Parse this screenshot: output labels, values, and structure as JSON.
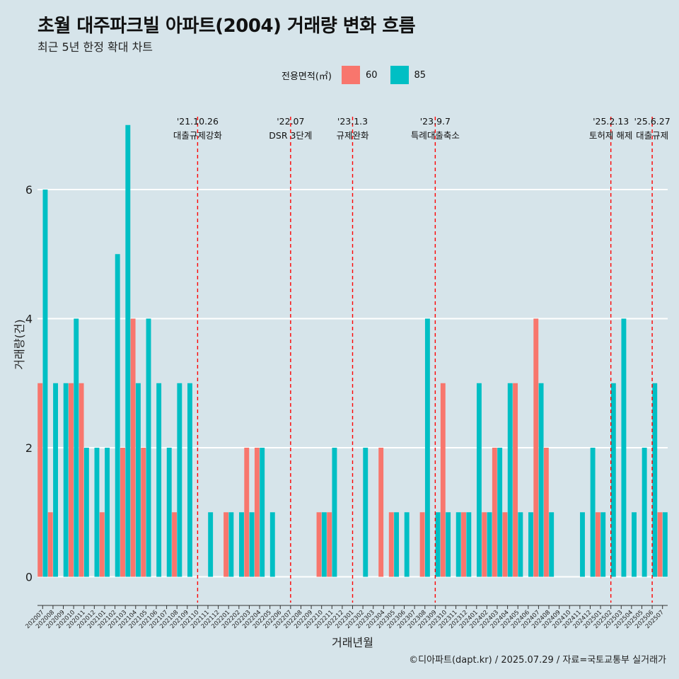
{
  "title": "초월 대주파크빌 아파트(2004) 거래량 변화 흐름",
  "subtitle": "최근 5년 한정 확대 차트",
  "caption": "©디아파트(dapt.kr) / 2025.07.29 / 자료=국토교통부 실거래가",
  "legend": {
    "title": "전용면적(㎡)",
    "items": [
      {
        "label": "60",
        "color": "#f8766d"
      },
      {
        "label": "85",
        "color": "#00bfc4"
      }
    ]
  },
  "chart_data": {
    "type": "bar",
    "title": "초월 대주파크빌 아파트(2004) 거래량 변화 흐름",
    "xlabel": "거래년월",
    "ylabel": "거래량(건)",
    "ylim": [
      -0.4,
      7.6
    ],
    "yticks": [
      0,
      2,
      4,
      6
    ],
    "categories": [
      "202007",
      "202008",
      "202009",
      "202010",
      "202011",
      "202012",
      "202101",
      "202102",
      "202103",
      "202104",
      "202105",
      "202106",
      "202107",
      "202108",
      "202109",
      "202110",
      "202111",
      "202112",
      "202201",
      "202202",
      "202203",
      "202204",
      "202205",
      "202206",
      "202207",
      "202208",
      "202209",
      "202210",
      "202211",
      "202212",
      "202301",
      "202302",
      "202303",
      "202304",
      "202305",
      "202306",
      "202307",
      "202308",
      "202309",
      "202310",
      "202311",
      "202312",
      "202401",
      "202402",
      "202403",
      "202404",
      "202405",
      "202406",
      "202407",
      "202408",
      "202409",
      "202410",
      "202411",
      "202412",
      "202501",
      "202502",
      "202503",
      "202504",
      "202505",
      "202506",
      "202507"
    ],
    "series": [
      {
        "name": "60",
        "color": "#f8766d",
        "values": [
          3,
          1,
          0,
          3,
          3,
          0,
          1,
          0,
          2,
          4,
          2,
          0,
          0,
          1,
          0,
          0,
          0,
          0,
          1,
          0,
          2,
          2,
          0,
          0,
          0,
          0,
          0,
          1,
          1,
          0,
          0,
          0,
          0,
          2,
          1,
          0,
          0,
          1,
          0,
          3,
          0,
          1,
          0,
          1,
          2,
          1,
          3,
          0,
          4,
          2,
          0,
          0,
          0,
          0,
          1,
          0,
          0,
          0,
          0,
          0,
          1
        ]
      },
      {
        "name": "85",
        "color": "#00bfc4",
        "values": [
          6,
          3,
          3,
          4,
          2,
          2,
          2,
          5,
          7,
          3,
          4,
          3,
          2,
          3,
          3,
          0,
          1,
          0,
          1,
          1,
          1,
          2,
          1,
          0,
          0,
          0,
          0,
          1,
          2,
          0,
          0,
          2,
          0,
          0,
          1,
          1,
          0,
          4,
          1,
          1,
          1,
          1,
          3,
          1,
          2,
          3,
          1,
          1,
          3,
          1,
          0,
          0,
          1,
          2,
          1,
          3,
          4,
          1,
          2,
          3,
          1
        ]
      }
    ],
    "events": [
      {
        "index": 15,
        "date": "'21.10.26",
        "label": "대출규제강화"
      },
      {
        "index": 24,
        "date": "'22.07",
        "label": "DSR 3단계"
      },
      {
        "index": 30,
        "date": "'23.1.3",
        "label": "규제완화"
      },
      {
        "index": 38,
        "date": "'23.9.7",
        "label": "특례대출축소"
      },
      {
        "index": 55,
        "date": "'25.2.13",
        "label": "토허제 해제"
      },
      {
        "index": 59,
        "date": "'25.6.27",
        "label": "대출규제"
      }
    ]
  }
}
